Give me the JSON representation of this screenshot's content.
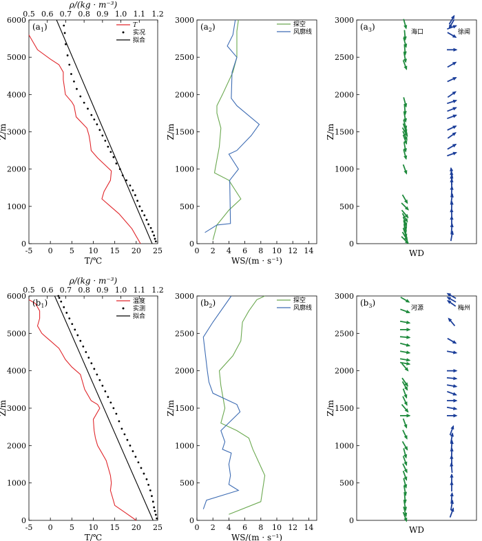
{
  "colors": {
    "temp": "#e0262b",
    "sounding": "#6aa84f",
    "profiler": "#3c6bb3",
    "wd1": "#1e8a3c",
    "wd2": "#1a3d99",
    "axis": "#000000"
  },
  "chart_data": [
    {
      "id": "a1",
      "type": "line",
      "panel_label": "(a",
      "panel_sub": "1",
      "panel_close": ")",
      "xlabel": "T/℃",
      "ylabel": "Z/m",
      "top_xlabel": "ρ/(kg · m⁻³)",
      "xlim": [
        -5,
        25
      ],
      "ylim": [
        0,
        6000
      ],
      "top_xlim": [
        0.5,
        1.2
      ],
      "xticks": [
        -5,
        0,
        5,
        10,
        15,
        20,
        25
      ],
      "yticks": [
        0,
        1000,
        2000,
        3000,
        4000,
        5000,
        6000
      ],
      "top_xticks": [
        "0.5",
        "0.6",
        "0.7",
        "0.8",
        "0.9",
        "1.0",
        "1.1",
        "1.2"
      ],
      "legend": {
        "position": "top-right",
        "items": [
          "T",
          "实况",
          "拟合"
        ]
      },
      "temperature": {
        "T": [
          21,
          20,
          19,
          17.5,
          16,
          14,
          12,
          12.5,
          13.5,
          14,
          14.2,
          11,
          9.5,
          9.3,
          9,
          8.5,
          6,
          5.5,
          5,
          3.5,
          3,
          3,
          2,
          0,
          -3,
          -4.5,
          -5
        ],
        "Z": [
          0,
          200,
          400,
          600,
          800,
          1000,
          1200,
          1400,
          1600,
          1700,
          1950,
          2300,
          2500,
          2700,
          2900,
          3100,
          3400,
          3700,
          3800,
          4000,
          4400,
          4600,
          4800,
          4950,
          5200,
          5500,
          5600
        ]
      },
      "density_obs": {
        "rho": [
          1.19,
          1.185,
          1.18,
          1.172,
          1.163,
          1.15,
          1.14,
          1.128,
          1.115,
          1.102,
          1.09,
          1.078,
          1.065,
          1.05,
          1.03,
          1.01,
          0.995,
          0.975,
          0.96,
          0.945,
          0.93,
          0.915,
          0.9,
          0.885,
          0.87,
          0.855,
          0.84,
          0.82,
          0.8,
          0.78,
          0.76,
          0.745,
          0.73,
          0.72,
          0.71,
          0.7,
          0.695,
          0.69
        ],
        "Z": [
          60,
          130,
          220,
          320,
          420,
          520,
          640,
          760,
          880,
          1000,
          1150,
          1300,
          1430,
          1560,
          1700,
          1830,
          2000,
          2150,
          2320,
          2460,
          2600,
          2760,
          2900,
          3050,
          3200,
          3330,
          3450,
          3620,
          3780,
          3950,
          4150,
          4350,
          4550,
          4800,
          5050,
          5350,
          5650,
          5850
        ]
      },
      "density_fit": {
        "rho": [
          0.65,
          1.17
        ],
        "Z": [
          6000,
          0
        ]
      }
    },
    {
      "id": "a2",
      "type": "line",
      "panel_label": "(a",
      "panel_sub": "2",
      "panel_close": ")",
      "xlabel": "WS/(m · s⁻¹)",
      "ylabel": "Z/m",
      "xlim": [
        0,
        15
      ],
      "ylim": [
        0,
        3000
      ],
      "xticks": [
        0,
        2,
        4,
        6,
        8,
        10,
        12,
        14
      ],
      "yticks": [
        0,
        500,
        1000,
        1500,
        2000,
        2500,
        3000
      ],
      "legend": {
        "position": "top-right",
        "items": [
          "探空",
          "风廓线"
        ]
      },
      "series": [
        {
          "name": "探空",
          "WS": [
            2,
            2.5,
            4,
            5.5,
            4,
            2.2,
            2.8,
            3,
            2.5,
            2.5,
            3.2,
            4.5,
            5,
            5,
            5,
            5.2
          ],
          "Z": [
            50,
            250,
            450,
            600,
            850,
            950,
            1300,
            1550,
            1750,
            1850,
            2000,
            2300,
            2500,
            2700,
            2850,
            3000
          ]
        },
        {
          "name": "风廓线",
          "WS": [
            1,
            2.5,
            4.2,
            4.1,
            5.2,
            4,
            5,
            6.8,
            7.8,
            5,
            4.3,
            4.4,
            5,
            3.8,
            4.5,
            4.8
          ],
          "Z": [
            150,
            250,
            270,
            850,
            1000,
            1200,
            1250,
            1450,
            1600,
            1850,
            1950,
            2300,
            2500,
            2650,
            2800,
            3000
          ]
        }
      ]
    },
    {
      "id": "a3",
      "type": "scatter",
      "panel_label": "(a",
      "panel_sub": "3",
      "panel_close": ")",
      "xlabel": "WD",
      "ylabel": "Z/m",
      "ylim": [
        0,
        3000
      ],
      "yticks": [
        0,
        500,
        1000,
        1500,
        2000,
        2500,
        3000
      ],
      "stations": [
        {
          "name": "海口",
          "direction_deg": [
            315,
            330,
            340,
            350,
            345,
            340,
            330,
            320,
            315,
            330,
            340,
            345,
            350,
            340,
            335,
            330,
            340,
            345,
            350,
            355,
            345,
            340,
            350,
            355,
            345,
            355,
            345
          ],
          "Z": [
            50,
            100,
            150,
            200,
            250,
            300,
            350,
            400,
            500,
            600,
            1000,
            1200,
            1300,
            1400,
            1450,
            1500,
            1550,
            1600,
            1700,
            1800,
            1900,
            2400,
            2500,
            2600,
            2700,
            2800,
            2950
          ]
        },
        {
          "name": "徐闻",
          "direction_deg": [
            190,
            185,
            180,
            178,
            182,
            188,
            183,
            180,
            178,
            175,
            172,
            250,
            240,
            235,
            245,
            250,
            248,
            252,
            235,
            245,
            240,
            270,
            300,
            250,
            210,
            30
          ],
          "Z": [
            100,
            200,
            300,
            400,
            500,
            600,
            700,
            800,
            850,
            900,
            950,
            1200,
            1300,
            1450,
            1550,
            1700,
            1800,
            1900,
            2000,
            2200,
            2400,
            2600,
            2800,
            2900,
            3000,
            2950
          ]
        }
      ]
    },
    {
      "id": "b1",
      "type": "line",
      "panel_label": "(b",
      "panel_sub": "1",
      "panel_close": ")",
      "xlabel": "T/℃",
      "ylabel": "Z/m",
      "top_xlabel": "ρ/(kg · m⁻³)",
      "xlim": [
        -5,
        25
      ],
      "ylim": [
        0,
        6000
      ],
      "top_xlim": [
        0.5,
        1.2
      ],
      "xticks": [
        -5,
        0,
        5,
        10,
        15,
        20,
        25
      ],
      "yticks": [
        0,
        1000,
        2000,
        3000,
        4000,
        5000,
        6000
      ],
      "top_xticks": [
        "0.5",
        "0.6",
        "0.7",
        "0.8",
        "0.9",
        "1.0",
        "1.1",
        "1.2"
      ],
      "legend": {
        "position": "top-right",
        "items": [
          "温度",
          "实测",
          "拟合"
        ]
      },
      "temperature": {
        "T": [
          20,
          17.5,
          15,
          14.5,
          14,
          14.2,
          14,
          13.5,
          13,
          12,
          11,
          10.5,
          10.2,
          10,
          11.5,
          11,
          9.5,
          8,
          7.5,
          7,
          5,
          3.5,
          2.5,
          2,
          0,
          -1,
          -2,
          -3,
          -2.5,
          -2.5,
          -3.5,
          -5
        ],
        "Z": [
          0,
          200,
          400,
          600,
          800,
          1000,
          1200,
          1400,
          1600,
          1800,
          2000,
          2200,
          2400,
          2700,
          3000,
          3100,
          3200,
          3500,
          3700,
          3900,
          4100,
          4300,
          4500,
          4600,
          4800,
          4900,
          5000,
          5200,
          5400,
          5600,
          5800,
          5900
        ]
      },
      "density_obs": {
        "rho": [
          1.195,
          1.19,
          1.185,
          1.18,
          1.175,
          1.168,
          1.16,
          1.15,
          1.14,
          1.125,
          1.11,
          1.095,
          1.08,
          1.065,
          1.05,
          1.035,
          1.02,
          1.005,
          0.99,
          0.975,
          0.96,
          0.945,
          0.93,
          0.915,
          0.9,
          0.885,
          0.87,
          0.855,
          0.84,
          0.825,
          0.81,
          0.795,
          0.78,
          0.765,
          0.75,
          0.735,
          0.72,
          0.705,
          0.69,
          0.675,
          0.665,
          0.66
        ],
        "Z": [
          50,
          150,
          250,
          350,
          500,
          650,
          800,
          950,
          1100,
          1250,
          1400,
          1550,
          1700,
          1850,
          2000,
          2150,
          2300,
          2450,
          2650,
          2850,
          3000,
          3150,
          3300,
          3450,
          3600,
          3750,
          3900,
          4050,
          4200,
          4350,
          4500,
          4650,
          4800,
          4950,
          5100,
          5250,
          5400,
          5550,
          5700,
          5850,
          5950,
          6000
        ]
      },
      "density_fit": {
        "rho": [
          0.64,
          1.175
        ],
        "Z": [
          6000,
          0
        ]
      }
    },
    {
      "id": "b2",
      "type": "line",
      "panel_label": "(b",
      "panel_sub": "2",
      "panel_close": ")",
      "xlabel": "WS/(m · s⁻¹)",
      "ylabel": "Z/m",
      "xlim": [
        0,
        15
      ],
      "ylim": [
        0,
        3000
      ],
      "xticks": [
        0,
        2,
        4,
        6,
        8,
        10,
        12,
        14
      ],
      "yticks": [
        0,
        500,
        1000,
        1500,
        2000,
        2500,
        3000
      ],
      "legend": {
        "position": "top-right",
        "items": [
          "探空",
          "风廓线"
        ]
      },
      "series": [
        {
          "name": "探空",
          "WS": [
            4,
            8,
            8.5,
            7,
            6.5,
            5,
            3,
            3.5,
            3,
            2.8,
            4.5,
            5.5,
            5.7,
            6.5,
            7.5,
            8.5
          ],
          "Z": [
            80,
            250,
            600,
            950,
            1100,
            1200,
            1300,
            1500,
            1800,
            2000,
            2200,
            2400,
            2650,
            2800,
            2950,
            3000
          ]
        },
        {
          "name": "风廓线",
          "WS": [
            0.8,
            1.2,
            5.2,
            4,
            4.2,
            4,
            4.3,
            3.2,
            3.5,
            3,
            5.4,
            5,
            2,
            1.5,
            1.3,
            0.8,
            2,
            4.3
          ],
          "Z": [
            150,
            270,
            400,
            480,
            600,
            750,
            900,
            950,
            1050,
            1200,
            1450,
            1550,
            1700,
            1850,
            2000,
            2450,
            2650,
            3000
          ]
        }
      ]
    },
    {
      "id": "b3",
      "type": "scatter",
      "panel_label": "(b",
      "panel_sub": "3",
      "panel_close": ")",
      "xlabel": "WD",
      "ylabel": "Z/m",
      "ylim": [
        0,
        3000
      ],
      "yticks": [
        0,
        500,
        1000,
        1500,
        2000,
        2500,
        3000
      ],
      "stations": [
        {
          "name": "河源",
          "direction_deg": [
            340,
            345,
            350,
            355,
            350,
            345,
            340,
            335,
            340,
            345,
            330,
            335,
            340,
            270,
            320,
            335,
            340,
            330,
            325,
            320,
            280,
            280,
            285,
            275,
            280,
            290,
            300,
            270,
            280
          ],
          "Z": [
            50,
            120,
            200,
            300,
            400,
            500,
            600,
            700,
            800,
            900,
            1000,
            1150,
            1300,
            1400,
            1500,
            1600,
            1700,
            1800,
            1850,
            2050,
            2150,
            2250,
            2350,
            2450,
            2650,
            2800,
            2950,
            2550,
            2100
          ]
        },
        {
          "name": "梅州",
          "direction_deg": [
            200,
            190,
            185,
            180,
            180,
            175,
            178,
            182,
            185,
            190,
            200,
            270,
            280,
            270,
            290,
            280,
            275,
            270,
            280,
            300,
            140,
            125,
            120,
            120
          ],
          "Z": [
            100,
            200,
            300,
            450,
            550,
            700,
            800,
            900,
            1000,
            1100,
            1200,
            1400,
            1500,
            1600,
            1700,
            1800,
            1900,
            2000,
            2250,
            2400,
            2650,
            2900,
            2950,
            3000
          ]
        }
      ]
    }
  ]
}
